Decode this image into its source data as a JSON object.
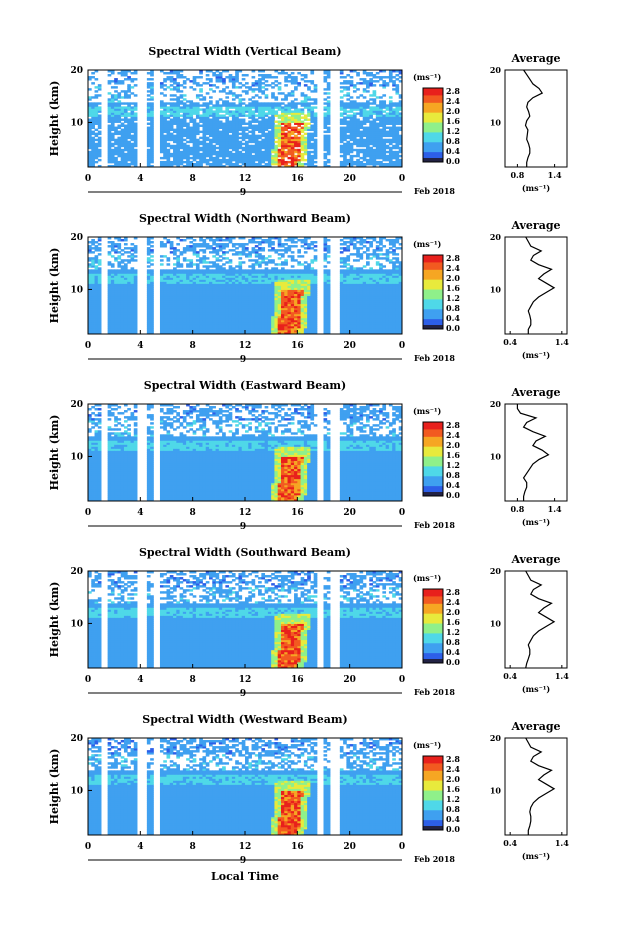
{
  "figure": {
    "xlabel": "Local Time",
    "ylabel": "Height (km)",
    "date_label": "Feb 2018",
    "day_label": "9",
    "colorbar_unit": "(ms⁻¹)",
    "colorbar_ticks": [
      "2.8",
      "2.4",
      "2.0",
      "1.6",
      "1.2",
      "0.8",
      "0.4",
      "0.0"
    ],
    "avg_title": "Average",
    "avg_xlabel": "(ms⁻¹)"
  },
  "chart_data": [
    {
      "type": "heatmap",
      "title": "Spectral Width (Vertical Beam)",
      "x_ticks": [
        "0",
        "4",
        "8",
        "12",
        "16",
        "20",
        "0"
      ],
      "y_ticks": [
        "20",
        "10"
      ],
      "xlim": [
        0,
        24
      ],
      "ylim": [
        1.5,
        20
      ],
      "clim": [
        0.0,
        3.0
      ],
      "avg_x_ticks": [
        "0.8",
        "1.4"
      ],
      "avg_xlim": [
        0.6,
        1.6
      ],
      "avg_profile": [
        0.95,
        0.95,
        0.97,
        1.0,
        1.0,
        0.98,
        0.95,
        0.96,
        0.97,
        0.93,
        0.95,
        1.0,
        0.98,
        0.95,
        0.97,
        1.05,
        1.2,
        1.15,
        1.05,
        1.0,
        0.95,
        0.9
      ]
    },
    {
      "type": "heatmap",
      "title": "Spectral Width (Northward Beam)",
      "x_ticks": [
        "0",
        "4",
        "8",
        "12",
        "16",
        "20",
        "0"
      ],
      "y_ticks": [
        "20",
        "10"
      ],
      "xlim": [
        0,
        24
      ],
      "ylim": [
        1.5,
        20
      ],
      "clim": [
        0.0,
        3.0
      ],
      "avg_x_ticks": [
        "0.4",
        "1.4"
      ],
      "avg_xlim": [
        0.3,
        1.5
      ],
      "avg_profile": [
        0.75,
        0.75,
        0.8,
        0.8,
        0.78,
        0.75,
        0.8,
        0.85,
        0.95,
        1.1,
        1.25,
        1.1,
        0.95,
        1.05,
        1.2,
        0.95,
        0.8,
        0.85,
        1.0,
        0.8,
        0.75,
        0.7
      ]
    },
    {
      "type": "heatmap",
      "title": "Spectral Width (Eastward Beam)",
      "x_ticks": [
        "0",
        "4",
        "8",
        "12",
        "16",
        "20",
        "0"
      ],
      "y_ticks": [
        "20",
        "10"
      ],
      "xlim": [
        0,
        24
      ],
      "ylim": [
        1.5,
        20
      ],
      "clim": [
        0.0,
        3.0
      ],
      "avg_x_ticks": [
        "0.8",
        "1.4"
      ],
      "avg_xlim": [
        0.6,
        1.6
      ],
      "avg_profile": [
        0.9,
        0.9,
        0.92,
        0.95,
        0.95,
        0.9,
        0.95,
        1.0,
        1.05,
        1.15,
        1.3,
        1.2,
        1.05,
        1.1,
        1.25,
        1.05,
        0.9,
        0.95,
        1.1,
        0.85,
        0.8,
        0.8
      ]
    },
    {
      "type": "heatmap",
      "title": "Spectral Width (Southward Beam)",
      "x_ticks": [
        "0",
        "4",
        "8",
        "12",
        "16",
        "20",
        "0"
      ],
      "y_ticks": [
        "20",
        "10"
      ],
      "xlim": [
        0,
        24
      ],
      "ylim": [
        1.5,
        20
      ],
      "clim": [
        0.0,
        3.0
      ],
      "avg_x_ticks": [
        "0.4",
        "1.4"
      ],
      "avg_xlim": [
        0.3,
        1.5
      ],
      "avg_profile": [
        0.7,
        0.72,
        0.75,
        0.78,
        0.78,
        0.75,
        0.8,
        0.85,
        0.95,
        1.1,
        1.25,
        1.1,
        0.95,
        1.05,
        1.2,
        0.95,
        0.8,
        0.85,
        1.0,
        0.8,
        0.75,
        0.7
      ]
    },
    {
      "type": "heatmap",
      "title": "Spectral Width (Westward Beam)",
      "x_ticks": [
        "0",
        "4",
        "8",
        "12",
        "16",
        "20",
        "0"
      ],
      "y_ticks": [
        "20",
        "10"
      ],
      "xlim": [
        0,
        24
      ],
      "ylim": [
        1.5,
        20
      ],
      "clim": [
        0.0,
        3.0
      ],
      "avg_x_ticks": [
        "0.4",
        "1.4"
      ],
      "avg_xlim": [
        0.3,
        1.5
      ],
      "avg_profile": [
        0.75,
        0.75,
        0.78,
        0.8,
        0.8,
        0.78,
        0.8,
        0.85,
        0.95,
        1.1,
        1.25,
        1.1,
        0.95,
        1.05,
        1.2,
        0.95,
        0.8,
        0.85,
        1.0,
        0.8,
        0.75,
        0.7
      ]
    }
  ]
}
